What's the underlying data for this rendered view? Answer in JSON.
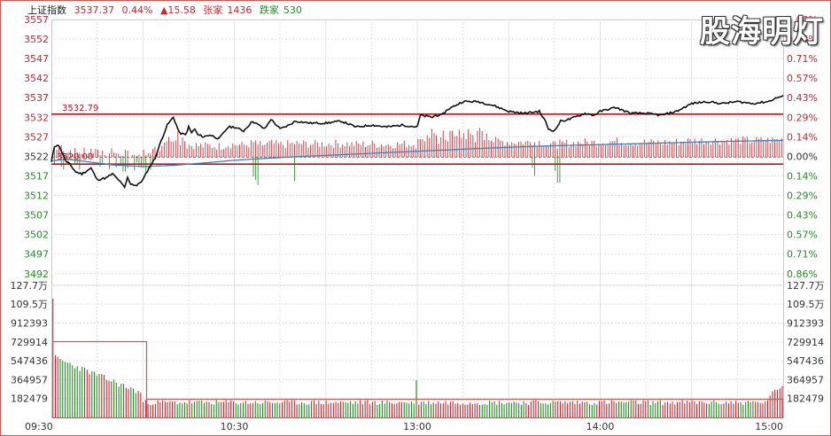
{
  "header": {
    "index_name": "上证指数",
    "price": "3537.37",
    "change_pct": "0.44%",
    "change_pts": "▲15.58",
    "up_label": "张家",
    "up_count": "1436",
    "down_label": "跌家",
    "down_count": "530"
  },
  "watermark": "股海明灯",
  "colors": {
    "up": "#d0232b",
    "down": "#1f8f1f",
    "price_line": "#111111",
    "avg_line": "#3a7fc0",
    "grid": "#e3e3e3",
    "frame": "#d9534f"
  },
  "chart_data": {
    "type": "line",
    "title": "",
    "prev_close": 3521.79,
    "price_axis": {
      "ticks": [
        3557,
        3552,
        3547,
        3542,
        3537,
        3532,
        3527,
        3522,
        3517,
        3512,
        3507,
        3502,
        3497,
        3492
      ],
      "ylim": [
        3489,
        3557
      ],
      "pct_labels": [
        "1.00%",
        "0.86%",
        "0.71%",
        "0.57%",
        "0.43%",
        "0.29%",
        "0.14%",
        "0.00%",
        "0.14%",
        "0.29%",
        "0.43%",
        "0.57%",
        "0.71%",
        "0.86%"
      ]
    },
    "volume_axis": {
      "ticks": [
        "127.7万",
        "109.5万",
        "912393",
        "729914",
        "547436",
        "364957",
        "182479"
      ],
      "tick_values": [
        1277000,
        1095000,
        912393,
        729914,
        547436,
        364957,
        182479
      ],
      "ylim": [
        0,
        1277000
      ]
    },
    "time_axis": {
      "labels": [
        "09:30",
        "10:30",
        "13:00",
        "14:00",
        "15:00"
      ],
      "minutes": [
        0,
        60,
        120,
        180,
        240
      ]
    },
    "annotations": [
      {
        "label": "3532.79",
        "value": 3532.79,
        "color": "#c0141c"
      },
      {
        "label": "3520.00",
        "value": 3520.0,
        "color": "#c0141c"
      }
    ],
    "series": [
      {
        "role": "price",
        "x": [
          0,
          1,
          2,
          3,
          4,
          5,
          6,
          8,
          10,
          13,
          15,
          18,
          20,
          22,
          24,
          25,
          26,
          28,
          30,
          32,
          34,
          36,
          38,
          40,
          41,
          42,
          44,
          45,
          46,
          47,
          48,
          50,
          52,
          55,
          58,
          60,
          63,
          66,
          70,
          72,
          75,
          78,
          80,
          85,
          90,
          95,
          100,
          105,
          110,
          115,
          120,
          121,
          125,
          126,
          128,
          130,
          135,
          140,
          145,
          150,
          155,
          160,
          162,
          163,
          165,
          167,
          170,
          175,
          178,
          180,
          185,
          190,
          195,
          200,
          205,
          210,
          215,
          220,
          225,
          230,
          235,
          238,
          240
        ],
        "y": [
          3520.5,
          3524.5,
          3525.0,
          3524.0,
          3522.0,
          3520.5,
          3520.0,
          3518.0,
          3517.5,
          3519.0,
          3516.0,
          3516.5,
          3517.5,
          3516.0,
          3514.0,
          3516.5,
          3515.0,
          3514.5,
          3516.0,
          3519.0,
          3521.5,
          3526.0,
          3530.0,
          3532.0,
          3530.0,
          3528.0,
          3527.5,
          3529.5,
          3528.0,
          3529.0,
          3527.5,
          3527.0,
          3527.5,
          3526.5,
          3529.5,
          3529.5,
          3528.5,
          3531.0,
          3529.0,
          3531.5,
          3529.0,
          3530.0,
          3531.0,
          3530.5,
          3530.5,
          3531.0,
          3529.5,
          3530.0,
          3529.5,
          3530.0,
          3529.5,
          3532.5,
          3532.0,
          3532.5,
          3532.5,
          3534.0,
          3536.0,
          3536.0,
          3535.0,
          3533.5,
          3533.0,
          3533.5,
          3531.0,
          3529.0,
          3528.5,
          3531.0,
          3531.5,
          3533.0,
          3532.5,
          3533.5,
          3534.5,
          3533.0,
          3533.0,
          3532.5,
          3533.5,
          3535.5,
          3536.0,
          3535.5,
          3536.0,
          3535.5,
          3536.0,
          3537.0,
          3537.4
        ]
      },
      {
        "role": "average",
        "x": [
          0,
          5,
          10,
          20,
          30,
          40,
          50,
          60,
          80,
          100,
          120,
          140,
          160,
          180,
          200,
          220,
          240
        ],
        "y": [
          3520.8,
          3521.3,
          3520.8,
          3519.8,
          3519.4,
          3519.7,
          3520.3,
          3521.0,
          3521.9,
          3522.6,
          3523.3,
          3524.0,
          3524.6,
          3525.0,
          3525.4,
          3525.8,
          3526.1
        ]
      }
    ]
  }
}
